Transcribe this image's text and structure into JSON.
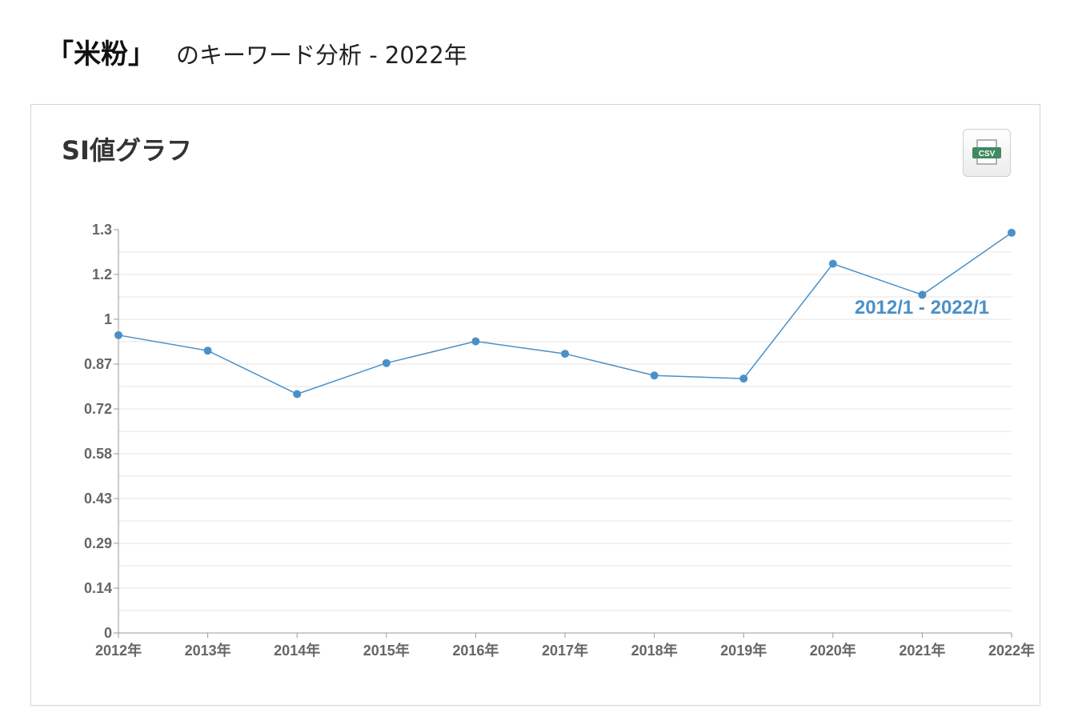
{
  "header": {
    "keyword": "「米粉」",
    "suffix": "のキーワード分析 - 2022年"
  },
  "panel": {
    "title": "SI値グラフ",
    "csv_button": {
      "label": "CSV",
      "icon": "csv-file-icon",
      "color": "#3f8a5f"
    }
  },
  "chart_data": {
    "type": "line",
    "title": "",
    "xlabel": "",
    "ylabel": "",
    "categories": [
      "2012年",
      "2013年",
      "2014年",
      "2015年",
      "2016年",
      "2017年",
      "2018年",
      "2019年",
      "2020年",
      "2021年",
      "2022年"
    ],
    "series": [
      {
        "values": [
          0.96,
          0.91,
          0.77,
          0.87,
          0.94,
          0.9,
          0.83,
          0.82,
          1.19,
          1.09,
          1.29
        ],
        "color": "#4a90c8"
      }
    ],
    "yticks": [
      "0",
      "0.14",
      "0.29",
      "0.43",
      "0.58",
      "0.72",
      "0.87",
      "1",
      "1.2",
      "1.3"
    ],
    "ylim": [
      0,
      1.3
    ],
    "annotation": "2012/1 - 2022/1",
    "grid": true,
    "colors": {
      "line": "#4a90c8",
      "grid": "#e3e3e3",
      "axis": "#999999",
      "tick_text": "#666666"
    }
  }
}
